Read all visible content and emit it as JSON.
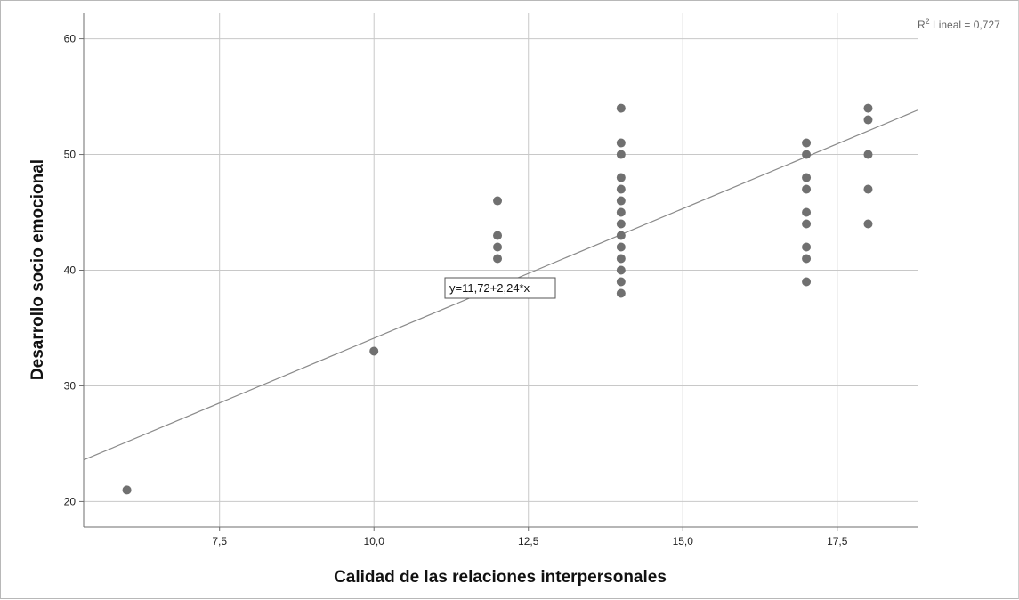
{
  "chart_data": {
    "type": "scatter",
    "xlabel": "Calidad de las relaciones interpersonales",
    "ylabel": "Desarrollo socio emocional",
    "xlim": [
      5.3,
      18.8
    ],
    "ylim": [
      17.8,
      62.2
    ],
    "x_ticks": [
      7.5,
      10.0,
      12.5,
      15.0,
      17.5
    ],
    "x_tick_labels": [
      "7,5",
      "10,0",
      "12,5",
      "15,0",
      "17,5"
    ],
    "y_ticks": [
      20,
      30,
      40,
      50,
      60
    ],
    "y_tick_labels": [
      "20",
      "30",
      "40",
      "50",
      "60"
    ],
    "grid": true,
    "points": [
      [
        6,
        21
      ],
      [
        10,
        33
      ],
      [
        12,
        41
      ],
      [
        12,
        42
      ],
      [
        12,
        43
      ],
      [
        12,
        46
      ],
      [
        14,
        38
      ],
      [
        14,
        39
      ],
      [
        14,
        40
      ],
      [
        14,
        41
      ],
      [
        14,
        42
      ],
      [
        14,
        43
      ],
      [
        14,
        44
      ],
      [
        14,
        45
      ],
      [
        14,
        46
      ],
      [
        14,
        47
      ],
      [
        14,
        48
      ],
      [
        14,
        50
      ],
      [
        14,
        51
      ],
      [
        14,
        54
      ],
      [
        17,
        39
      ],
      [
        17,
        41
      ],
      [
        17,
        42
      ],
      [
        17,
        44
      ],
      [
        17,
        45
      ],
      [
        17,
        47
      ],
      [
        17,
        48
      ],
      [
        17,
        50
      ],
      [
        17,
        51
      ],
      [
        18,
        44
      ],
      [
        18,
        47
      ],
      [
        18,
        50
      ],
      [
        18,
        53
      ],
      [
        18,
        54
      ]
    ],
    "fit_line": {
      "intercept": 11.72,
      "slope": 2.24
    },
    "equation_label": "y=11,72+2,24*x",
    "r2_label_prefix": "R",
    "r2_label_suffix": " Lineal = 0,727",
    "colors": {
      "points": "#707070",
      "line": "#8a8a8a",
      "grid": "#c8c8c8",
      "axis": "#6e6e6e"
    }
  }
}
